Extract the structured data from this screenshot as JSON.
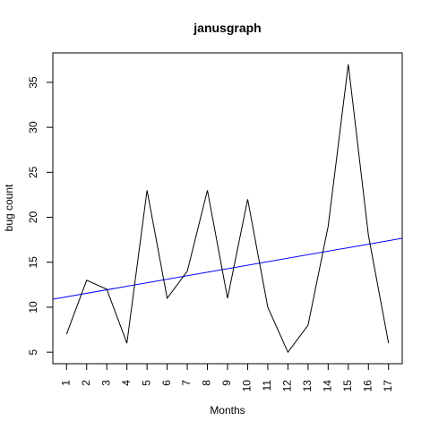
{
  "chart_data": {
    "type": "line",
    "title": "janusgraph",
    "xlabel": "Months",
    "ylabel": "bug count",
    "x": [
      1,
      2,
      3,
      4,
      5,
      6,
      7,
      8,
      9,
      10,
      11,
      12,
      13,
      14,
      15,
      16,
      17
    ],
    "series": [
      {
        "color": "#000000",
        "values": [
          7,
          13,
          12,
          6,
          23,
          11,
          14,
          23,
          11,
          22,
          10,
          5,
          8,
          19,
          37,
          18,
          6
        ]
      }
    ],
    "trend_line": {
      "color": "#0000ff",
      "intercept": 10.77,
      "slope": 0.39
    },
    "xlim": [
      0.32,
      17.68
    ],
    "ylim": [
      3.72,
      38.28
    ],
    "x_ticks": [
      "1",
      "2",
      "3",
      "4",
      "5",
      "6",
      "7",
      "8",
      "9",
      "10",
      "11",
      "12",
      "13",
      "14",
      "15",
      "16",
      "17"
    ],
    "y_ticks": [
      "5",
      "10",
      "15",
      "20",
      "25",
      "30",
      "35"
    ],
    "grid": false,
    "legend": "none"
  }
}
